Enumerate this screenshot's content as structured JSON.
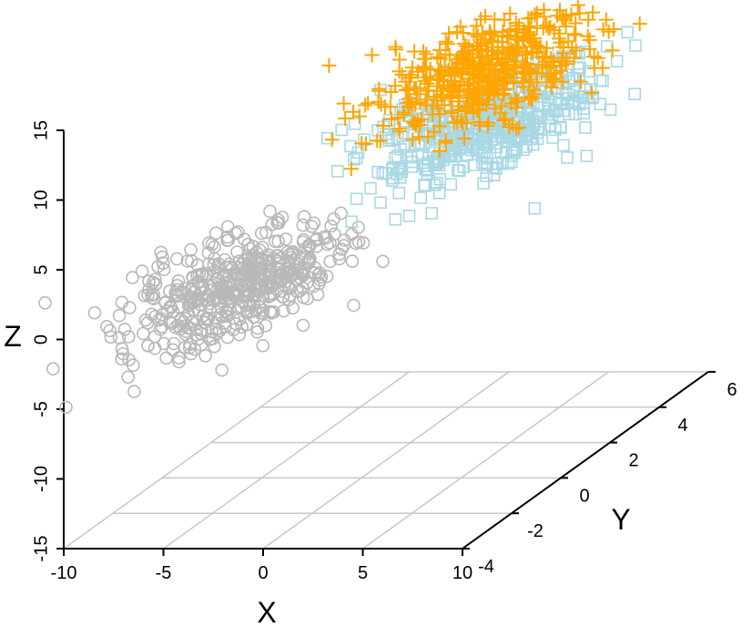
{
  "chart_data": {
    "type": "scatter",
    "projection": "3d",
    "title": "",
    "xlabel": "X",
    "ylabel": "Y",
    "zlabel": "Z",
    "xlim": [
      -10,
      10
    ],
    "ylim": [
      -4,
      6
    ],
    "zlim": [
      -15,
      15
    ],
    "x_ticks": [
      "-10",
      "-5",
      "0",
      "5",
      "10"
    ],
    "y_ticks": [
      "-4",
      "-2",
      "0",
      "2",
      "4",
      "6"
    ],
    "z_ticks": [
      "-15",
      "-10",
      "-5",
      "0",
      "5",
      "10",
      "15"
    ],
    "grid": "on",
    "legend": "none",
    "series": [
      {
        "marker": "circle",
        "color": "#b8b8b8",
        "center": {
          "x": -5,
          "y": -1,
          "z": 0
        },
        "spread": {
          "x": 2,
          "y": 1.5,
          "z": 1.2
        },
        "count": 500
      },
      {
        "marker": "square",
        "color": "#a9d8e4",
        "center": {
          "x": 5,
          "y": 1,
          "z": 9
        },
        "spread": {
          "x": 2,
          "y": 1.5,
          "z": 1.2
        },
        "count": 500
      },
      {
        "marker": "plus",
        "color": "#ffa500",
        "center": {
          "x": 5,
          "y": 1,
          "z": 12.8
        },
        "spread": {
          "x": 2,
          "y": 1.5,
          "z": 1.2
        },
        "count": 500
      }
    ]
  }
}
